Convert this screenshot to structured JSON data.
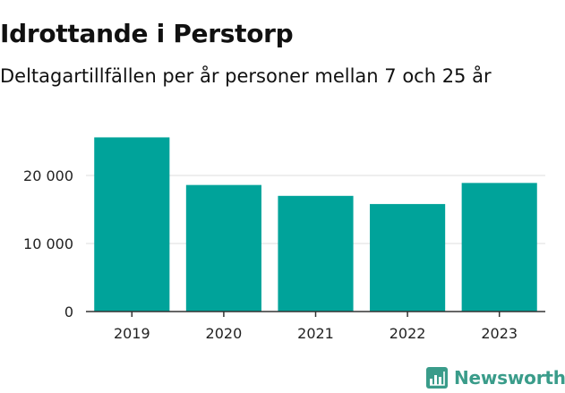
{
  "title": "Idrottande i Perstorp",
  "subtitle": "Deltagartillfällen per år personer mellan 7 och 25 år",
  "brand": {
    "name": "Newsworthy",
    "color": "#3a9c8a",
    "icon": "newsworthy-logo-icon"
  },
  "colors": {
    "bar": "#00a39a",
    "grid": "#dddddd",
    "axis": "#333333",
    "text": "#222222"
  },
  "chart_data": {
    "type": "bar",
    "categories": [
      "2019",
      "2020",
      "2021",
      "2022",
      "2023"
    ],
    "values": [
      25600,
      18600,
      17000,
      15800,
      18900
    ],
    "ylim": [
      0,
      30000
    ],
    "yticks": [
      0,
      10000,
      20000
    ],
    "ytick_labels": [
      "0",
      "10 000",
      "20 000"
    ],
    "grid": true,
    "legend": "none"
  }
}
